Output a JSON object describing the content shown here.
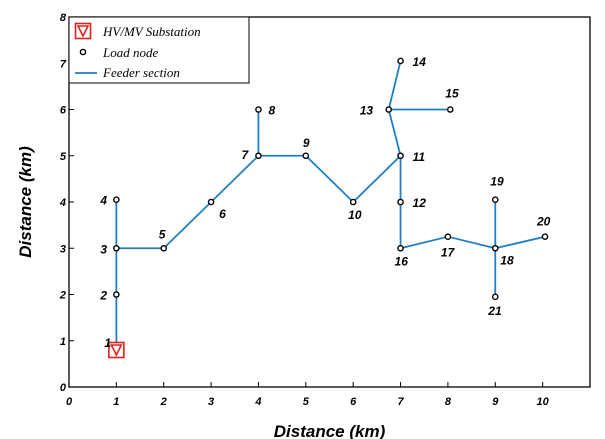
{
  "chart_data": {
    "type": "scatter",
    "xlabel": "Distance (km)",
    "ylabel": "Distance (km)",
    "xlim": [
      0,
      11
    ],
    "ylim": [
      0,
      8
    ],
    "xticks": [
      "0",
      "1",
      "2",
      "3",
      "4",
      "5",
      "6",
      "7",
      "8",
      "9",
      "10"
    ],
    "yticks": [
      "0",
      "1",
      "2",
      "3",
      "4",
      "5",
      "6",
      "7",
      "8"
    ],
    "grid": false,
    "legend_position": "top-left",
    "legend": [
      {
        "key": "substation",
        "label": "HV/MV Substation"
      },
      {
        "key": "load",
        "label": "Load node"
      },
      {
        "key": "feeder",
        "label": "Feeder section"
      }
    ],
    "colors": {
      "feeder": "#1f7fc4",
      "substation": "#e0201c",
      "node": "#000000"
    },
    "substation": {
      "label": "1",
      "x": 1.0,
      "y": 0.8
    },
    "nodes": [
      {
        "id": "2",
        "x": 1.0,
        "y": 2.0
      },
      {
        "id": "3",
        "x": 1.0,
        "y": 3.0
      },
      {
        "id": "4",
        "x": 1.0,
        "y": 4.05
      },
      {
        "id": "5",
        "x": 2.0,
        "y": 3.0
      },
      {
        "id": "6",
        "x": 3.0,
        "y": 4.0
      },
      {
        "id": "7",
        "x": 4.0,
        "y": 5.0
      },
      {
        "id": "8",
        "x": 4.0,
        "y": 6.0
      },
      {
        "id": "9",
        "x": 5.0,
        "y": 5.0
      },
      {
        "id": "10",
        "x": 6.0,
        "y": 4.0
      },
      {
        "id": "11",
        "x": 7.0,
        "y": 5.0
      },
      {
        "id": "12",
        "x": 7.0,
        "y": 4.0
      },
      {
        "id": "13",
        "x": 6.75,
        "y": 6.0
      },
      {
        "id": "14",
        "x": 7.0,
        "y": 7.05
      },
      {
        "id": "15",
        "x": 8.05,
        "y": 6.0
      },
      {
        "id": "16",
        "x": 7.0,
        "y": 3.0
      },
      {
        "id": "17",
        "x": 8.0,
        "y": 3.25
      },
      {
        "id": "18",
        "x": 9.0,
        "y": 3.0
      },
      {
        "id": "19",
        "x": 9.0,
        "y": 4.05
      },
      {
        "id": "20",
        "x": 10.05,
        "y": 3.25
      },
      {
        "id": "21",
        "x": 9.0,
        "y": 1.95
      }
    ],
    "feeders": [
      [
        "1",
        "2"
      ],
      [
        "2",
        "3"
      ],
      [
        "3",
        "4"
      ],
      [
        "3",
        "5"
      ],
      [
        "5",
        "6"
      ],
      [
        "6",
        "7"
      ],
      [
        "7",
        "8"
      ],
      [
        "7",
        "9"
      ],
      [
        "9",
        "10"
      ],
      [
        "10",
        "11"
      ],
      [
        "11",
        "12"
      ],
      [
        "12",
        "16"
      ],
      [
        "11",
        "13"
      ],
      [
        "13",
        "14"
      ],
      [
        "13",
        "15"
      ],
      [
        "16",
        "17"
      ],
      [
        "17",
        "18"
      ],
      [
        "18",
        "19"
      ],
      [
        "18",
        "20"
      ],
      [
        "18",
        "21"
      ]
    ]
  }
}
